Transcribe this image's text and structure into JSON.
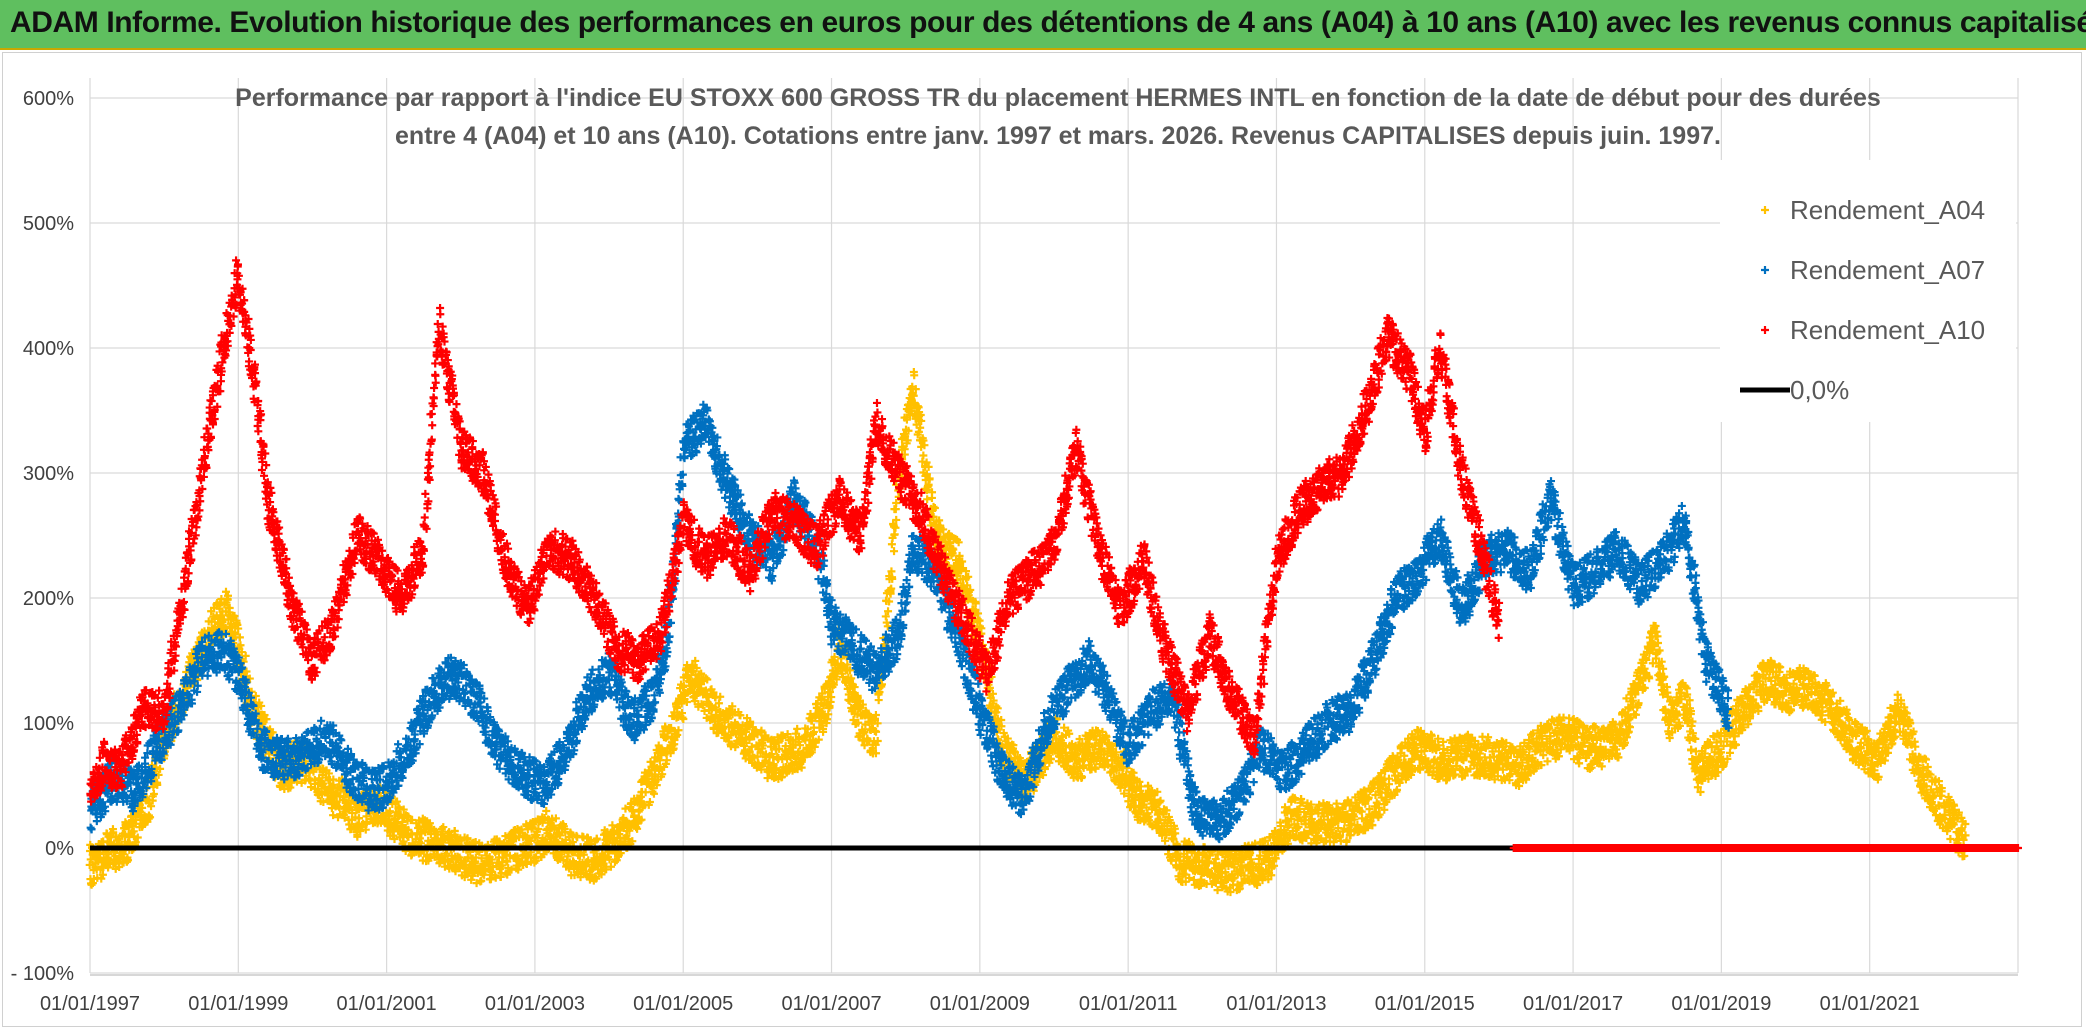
{
  "header": {
    "title": "ADAM Informe. Evolution historique des performances en euros pour des détentions de 4 ans (A04) à 10 ans (A10) avec les revenus connus capitalisés"
  },
  "colors": {
    "banner": "#5fbf5f",
    "a04": "#ffc000",
    "a07": "#0070c0",
    "a10": "#ff0000",
    "zero": "#000000",
    "grid": "#d9d9d9"
  },
  "chart_data": {
    "type": "scatter",
    "title_line1": "Performance par rapport à l'indice EU STOXX 600 GROSS TR  du placement HERMES INTL en fonction de la date de début pour des durées",
    "title_line2": "entre 4 (A04) et 10 ans (A10). Cotations entre janv. 1997 et mars. 2026. Revenus CAPITALISES depuis juin. 1997.",
    "ylim": [
      -100,
      600
    ],
    "y_ticks": [
      -100,
      0,
      100,
      200,
      300,
      400,
      500,
      600
    ],
    "y_tick_labels": [
      "- 100%",
      "0%",
      "100%",
      "200%",
      "300%",
      "400%",
      "500%",
      "600%"
    ],
    "xlim": [
      1997.0,
      2023.0
    ],
    "x_ticks": [
      1997,
      1999,
      2001,
      2003,
      2005,
      2007,
      2009,
      2011,
      2013,
      2015,
      2017,
      2019,
      2021
    ],
    "x_tick_labels": [
      "01/01/1997",
      "01/01/1999",
      "01/01/2001",
      "01/01/2003",
      "01/01/2005",
      "01/01/2007",
      "01/01/2009",
      "01/01/2011",
      "01/01/2013",
      "01/01/2015",
      "01/01/2017",
      "01/01/2019",
      "01/01/2021"
    ],
    "legend_position": "top-right",
    "series": [
      {
        "name": "Rendement_A04",
        "key": "a04",
        "marker": "+",
        "x": [
          1997.0,
          1997.2,
          1997.5,
          1997.8,
          1998.0,
          1998.3,
          1998.6,
          1998.85,
          1999.0,
          1999.2,
          1999.4,
          1999.6,
          1999.8,
          2000.0,
          2000.2,
          2000.4,
          2000.6,
          2000.8,
          2001.0,
          2001.3,
          2001.6,
          2002.0,
          2002.3,
          2002.6,
          2003.0,
          2003.2,
          2003.5,
          2003.8,
          2004.0,
          2004.3,
          2004.6,
          2004.9,
          2005.1,
          2005.4,
          2005.8,
          2006.2,
          2006.6,
          2006.9,
          2007.1,
          2007.4,
          2007.6,
          2007.9,
          2008.1,
          2008.4,
          2008.7,
          2009.0,
          2009.3,
          2009.6,
          2010.0,
          2010.3,
          2010.6,
          2010.9,
          2011.1,
          2011.4,
          2011.7,
          2012.0,
          2012.3,
          2012.6,
          2012.9,
          2013.2,
          2013.5,
          2013.9,
          2014.3,
          2014.6,
          2014.9,
          2015.2,
          2015.6,
          2016.0,
          2016.3,
          2016.6,
          2016.9,
          2017.2,
          2017.6,
          2017.9,
          2018.1,
          2018.3,
          2018.5,
          2018.7,
          2019.0,
          2019.3,
          2019.6,
          2019.9,
          2020.2,
          2020.5,
          2020.8,
          2021.1,
          2021.4,
          2021.7,
          2022.0,
          2022.3
        ],
        "y": [
          -15,
          -5,
          5,
          40,
          90,
          130,
          170,
          190,
          160,
          110,
          85,
          60,
          70,
          65,
          45,
          40,
          25,
          35,
          30,
          10,
          5,
          -5,
          -15,
          -5,
          5,
          15,
          -5,
          -10,
          0,
          20,
          60,
          100,
          140,
          110,
          90,
          70,
          80,
          110,
          160,
          100,
          90,
          290,
          370,
          250,
          230,
          170,
          80,
          50,
          90,
          70,
          80,
          65,
          40,
          30,
          -10,
          -15,
          -20,
          -15,
          -10,
          25,
          20,
          20,
          35,
          60,
          80,
          70,
          75,
          70,
          65,
          85,
          90,
          80,
          85,
          130,
          165,
          100,
          120,
          60,
          80,
          110,
          135,
          125,
          130,
          110,
          85,
          70,
          110,
          60,
          30,
          5
        ]
      },
      {
        "name": "Rendement_A07",
        "key": "a07",
        "marker": "+",
        "x": [
          1997.0,
          1997.3,
          1997.6,
          1997.9,
          1998.2,
          1998.5,
          1998.8,
          1999.0,
          1999.3,
          1999.6,
          1999.9,
          2000.2,
          2000.5,
          2000.8,
          2001.0,
          2001.3,
          2001.6,
          2001.9,
          2002.2,
          2002.5,
          2002.8,
          2003.1,
          2003.4,
          2003.7,
          2004.0,
          2004.3,
          2004.6,
          2004.8,
          2005.0,
          2005.3,
          2005.6,
          2005.9,
          2006.2,
          2006.5,
          2006.8,
          2007.0,
          2007.3,
          2007.6,
          2007.9,
          2008.1,
          2008.4,
          2008.7,
          2009.0,
          2009.3,
          2009.6,
          2009.9,
          2010.2,
          2010.5,
          2010.8,
          2011.0,
          2011.3,
          2011.6,
          2011.9,
          2012.2,
          2012.5,
          2012.8,
          2013.1,
          2013.4,
          2013.7,
          2014.0,
          2014.3,
          2014.6,
          2014.9,
          2015.2,
          2015.5,
          2015.8,
          2016.1,
          2016.4,
          2016.7,
          2017.0,
          2017.3,
          2017.6,
          2017.9,
          2018.2,
          2018.5,
          2018.8,
          2019.1
        ],
        "y": [
          30,
          55,
          45,
          80,
          110,
          150,
          160,
          140,
          80,
          70,
          75,
          90,
          60,
          45,
          50,
          80,
          120,
          140,
          120,
          80,
          60,
          50,
          75,
          120,
          140,
          100,
          120,
          170,
          320,
          340,
          290,
          250,
          230,
          280,
          240,
          180,
          160,
          140,
          170,
          240,
          220,
          170,
          110,
          60,
          40,
          100,
          130,
          150,
          110,
          80,
          110,
          120,
          30,
          20,
          40,
          80,
          60,
          80,
          100,
          110,
          150,
          200,
          220,
          250,
          190,
          230,
          240,
          220,
          280,
          210,
          220,
          240,
          210,
          230,
          260,
          150,
          110
        ]
      },
      {
        "name": "Rendement_A10",
        "key": "a10",
        "marker": "+",
        "x": [
          1997.0,
          1997.2,
          1997.4,
          1997.7,
          1998.0,
          1998.3,
          1998.6,
          1998.8,
          1999.0,
          1999.2,
          1999.4,
          1999.7,
          2000.0,
          2000.3,
          2000.6,
          2000.9,
          2001.2,
          2001.5,
          2001.7,
          2002.0,
          2002.3,
          2002.6,
          2002.9,
          2003.2,
          2003.5,
          2003.8,
          2004.1,
          2004.4,
          2004.7,
          2005.0,
          2005.3,
          2005.6,
          2005.9,
          2006.2,
          2006.5,
          2006.8,
          2007.1,
          2007.4,
          2007.6,
          2007.9,
          2008.2,
          2008.5,
          2008.8,
          2009.1,
          2009.4,
          2009.7,
          2010.0,
          2010.3,
          2010.6,
          2010.9,
          2011.2,
          2011.5,
          2011.8,
          2012.1,
          2012.4,
          2012.7,
          2013.0,
          2013.3,
          2013.6,
          2013.9,
          2014.2,
          2014.5,
          2014.8,
          2015.0,
          2015.2,
          2015.5,
          2015.8,
          2016.0
        ],
        "y": [
          40,
          70,
          60,
          110,
          110,
          220,
          330,
          400,
          460,
          380,
          280,
          200,
          150,
          180,
          250,
          230,
          200,
          240,
          420,
          320,
          300,
          230,
          190,
          240,
          230,
          200,
          160,
          150,
          170,
          260,
          230,
          250,
          220,
          270,
          260,
          240,
          280,
          250,
          340,
          300,
          270,
          220,
          180,
          140,
          200,
          220,
          240,
          320,
          240,
          190,
          230,
          160,
          110,
          170,
          120,
          90,
          230,
          270,
          290,
          300,
          350,
          410,
          380,
          330,
          400,
          300,
          230,
          180
        ]
      },
      {
        "name": "0,0%",
        "key": "zero",
        "marker": "line",
        "x": [
          1997.0,
          2016.2
        ],
        "y": [
          0,
          0
        ]
      }
    ],
    "a10_baseline_segment": {
      "x_start": 2016.2,
      "x_end": 2023.0,
      "y": 0
    }
  }
}
